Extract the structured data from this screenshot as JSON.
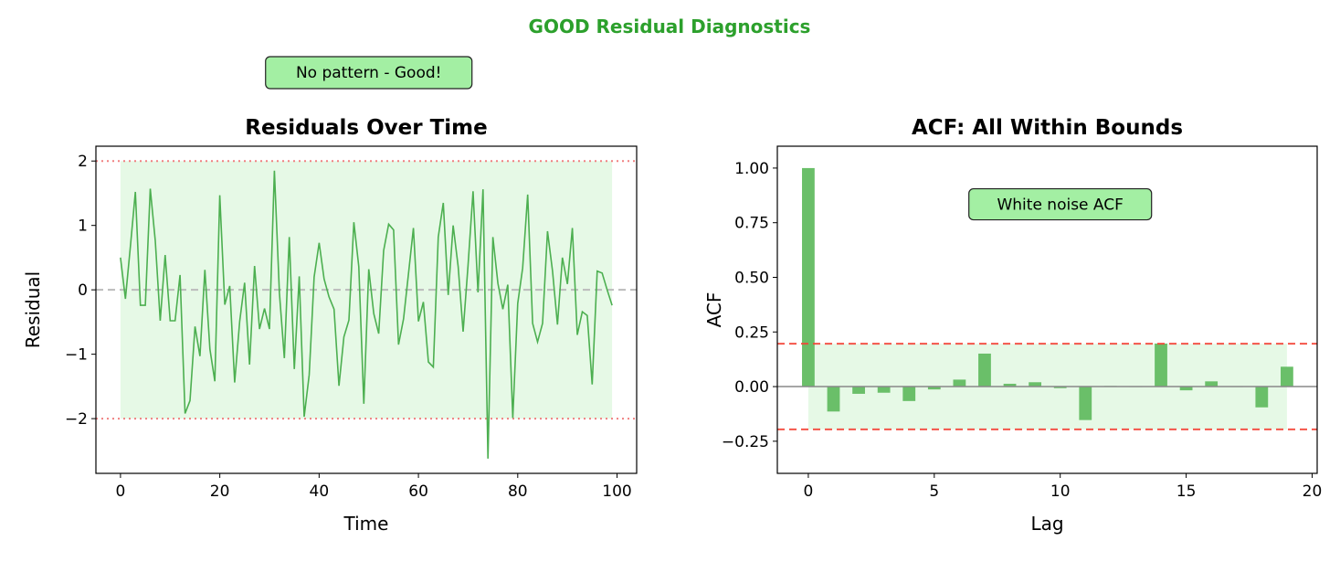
{
  "figure": {
    "suptitle": "GOOD Residual Diagnostics",
    "suptitle_color": "#2ca02c"
  },
  "chart_data": [
    {
      "type": "line",
      "title": "Residuals Over Time",
      "xlabel": "Time",
      "ylabel": "Residual",
      "xlim": [
        -4.95,
        103.95
      ],
      "ylim": [
        -2.85,
        2.23
      ],
      "xticks": [
        0,
        20,
        40,
        60,
        80,
        100
      ],
      "yticks": [
        -2,
        -1,
        0,
        1,
        2
      ],
      "grid": false,
      "line_color": "#4caf50",
      "band": {
        "from": 0,
        "to": 99,
        "low": -2,
        "high": 2,
        "color": "#e6f9e6"
      },
      "hlines": [
        {
          "y": 2,
          "style": "dotted",
          "color": "#f08080"
        },
        {
          "y": -2,
          "style": "dotted",
          "color": "#f08080"
        },
        {
          "y": 0,
          "style": "dashed",
          "color": "#bbbbbb"
        }
      ],
      "annotation": {
        "text": "No pattern - Good!",
        "x": 50,
        "position": "top-center"
      },
      "y": [
        0.5,
        -0.14,
        0.68,
        1.52,
        -0.24,
        -0.24,
        1.57,
        0.76,
        -0.48,
        0.54,
        -0.48,
        -0.48,
        0.23,
        -1.92,
        -1.72,
        -0.57,
        -1.03,
        0.31,
        -0.92,
        -1.42,
        1.47,
        -0.23,
        0.06,
        -1.44,
        -0.49,
        0.11,
        -1.16,
        0.37,
        -0.61,
        -0.29,
        -0.61,
        1.85,
        -0.05,
        -1.06,
        0.82,
        -1.23,
        0.21,
        -1.97,
        -1.32,
        0.2,
        0.73,
        0.17,
        -0.11,
        -0.3,
        -1.49,
        -0.73,
        -0.47,
        1.05,
        0.36,
        -1.77,
        0.32,
        -0.37,
        -0.68,
        0.61,
        1.02,
        0.93,
        -0.85,
        -0.45,
        0.25,
        0.96,
        -0.49,
        -0.19,
        -1.12,
        -1.2,
        0.82,
        1.35,
        -0.08,
        1.0,
        0.36,
        -0.65,
        0.38,
        1.53,
        -0.04,
        1.56,
        -2.62,
        0.82,
        0.1,
        -0.3,
        0.08,
        -1.99,
        -0.21,
        0.34,
        1.48,
        -0.52,
        -0.81,
        -0.52,
        0.91,
        0.29,
        -0.54,
        0.5,
        0.09,
        0.96,
        -0.7,
        -0.34,
        -0.4,
        -1.47,
        0.29,
        0.26,
        0.0,
        -0.24
      ]
    },
    {
      "type": "bar",
      "title": "ACF: All Within Bounds",
      "xlabel": "Lag",
      "ylabel": "ACF",
      "xlim": [
        -1.23,
        20.2
      ],
      "ylim": [
        -0.397,
        1.1
      ],
      "xticks": [
        0,
        5,
        10,
        15,
        20
      ],
      "yticks": [
        -0.25,
        0.0,
        0.25,
        0.5,
        0.75,
        1.0
      ],
      "ytick_labels": [
        "−0.25",
        "0.00",
        "0.25",
        "0.50",
        "0.75",
        "1.00"
      ],
      "grid": false,
      "bar_color": "#6abf69",
      "bar_width": 0.5,
      "confidence_bound": 0.196,
      "bound_color": "#f44336",
      "band": {
        "from": 0,
        "to": 19,
        "color": "#e6f9e6"
      },
      "annotation": {
        "text": "White noise ACF",
        "x": 10,
        "y": 0.83
      },
      "categories": [
        0,
        1,
        2,
        3,
        4,
        5,
        6,
        7,
        8,
        9,
        10,
        11,
        12,
        13,
        14,
        15,
        16,
        17,
        18,
        19
      ],
      "values": [
        1.0,
        -0.114,
        -0.033,
        -0.028,
        -0.066,
        -0.013,
        0.032,
        0.151,
        0.013,
        0.02,
        -0.007,
        -0.153,
        0.003,
        0.0,
        0.197,
        -0.017,
        0.024,
        0.0,
        -0.095,
        0.091
      ]
    }
  ]
}
